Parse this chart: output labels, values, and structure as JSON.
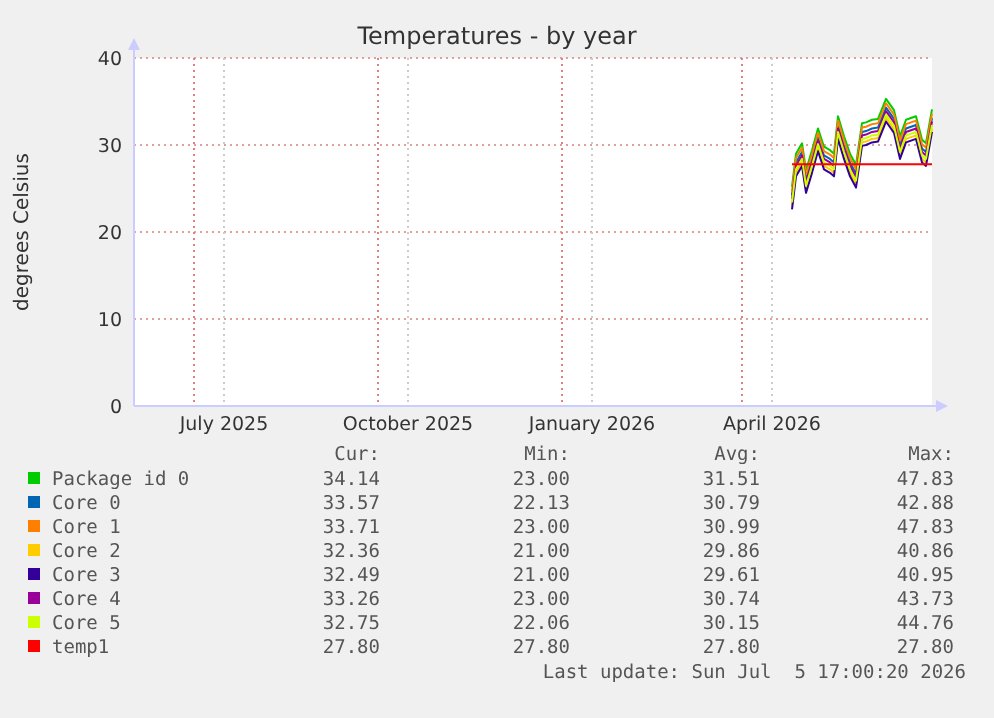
{
  "chart_data": {
    "type": "line",
    "title": "Temperatures - by year",
    "ylabel": "degrees Celsius",
    "x": [
      "2026-04-26",
      "2026-04-28",
      "2026-05-01",
      "2026-05-03",
      "2026-05-06",
      "2026-05-09",
      "2026-05-12",
      "2026-05-15",
      "2026-05-17",
      "2026-05-19",
      "2026-05-22",
      "2026-05-25",
      "2026-05-28",
      "2026-05-31",
      "2026-06-02",
      "2026-06-05",
      "2026-06-08",
      "2026-06-12",
      "2026-06-16",
      "2026-06-19",
      "2026-06-22",
      "2026-06-27",
      "2026-06-30",
      "2026-07-02",
      "2026-07-05"
    ],
    "series": [
      {
        "name": "Package id 0",
        "color": "#00cc00",
        "values": [
          25.2,
          29.0,
          30.2,
          27.1,
          29.4,
          31.9,
          29.8,
          29.4,
          29.0,
          33.3,
          31.0,
          29.0,
          27.7,
          32.5,
          32.6,
          32.9,
          33.0,
          35.3,
          34.0,
          31.0,
          32.9,
          33.3,
          30.6,
          30.2,
          34.1
        ]
      },
      {
        "name": "Core 0",
        "color": "#0066b3",
        "values": [
          24.2,
          28.0,
          29.2,
          26.1,
          28.4,
          30.9,
          28.8,
          28.4,
          28.0,
          32.3,
          30.0,
          28.0,
          26.7,
          31.5,
          31.6,
          31.9,
          32.0,
          34.3,
          33.0,
          30.0,
          31.9,
          32.3,
          29.6,
          29.2,
          33.1
        ]
      },
      {
        "name": "Core 1",
        "color": "#ff8000",
        "values": [
          24.7,
          28.5,
          29.7,
          26.6,
          28.9,
          31.4,
          29.3,
          28.9,
          28.5,
          32.8,
          30.5,
          28.5,
          27.2,
          32.0,
          32.1,
          32.4,
          32.5,
          34.8,
          33.5,
          30.5,
          32.4,
          32.8,
          30.1,
          29.7,
          33.6
        ]
      },
      {
        "name": "Core 2",
        "color": "#ffcc00",
        "values": [
          23.0,
          26.8,
          28.0,
          24.9,
          27.2,
          29.7,
          27.6,
          27.2,
          26.8,
          31.1,
          28.8,
          26.8,
          25.5,
          30.3,
          30.4,
          30.7,
          30.8,
          33.1,
          31.8,
          28.8,
          30.7,
          31.1,
          28.4,
          28.0,
          31.9
        ]
      },
      {
        "name": "Core 3",
        "color": "#330099",
        "values": [
          22.6,
          26.4,
          27.6,
          24.5,
          26.8,
          29.3,
          27.2,
          26.8,
          26.4,
          30.7,
          28.4,
          26.4,
          25.1,
          29.9,
          30.0,
          30.3,
          30.4,
          32.7,
          31.4,
          28.4,
          30.3,
          30.7,
          28.0,
          27.6,
          31.5
        ]
      },
      {
        "name": "Core 4",
        "color": "#990099",
        "values": [
          23.8,
          27.6,
          28.8,
          25.7,
          28.0,
          30.5,
          28.4,
          28.0,
          27.6,
          31.9,
          29.6,
          27.6,
          26.3,
          31.1,
          31.2,
          31.5,
          31.6,
          33.9,
          32.6,
          29.6,
          31.5,
          31.9,
          29.2,
          28.8,
          32.7
        ]
      },
      {
        "name": "Core 5",
        "color": "#ccff00",
        "values": [
          23.4,
          27.2,
          28.4,
          25.3,
          27.6,
          30.1,
          28.0,
          27.6,
          27.2,
          31.5,
          29.2,
          27.2,
          25.9,
          30.7,
          30.8,
          31.1,
          31.2,
          33.5,
          32.2,
          29.2,
          31.1,
          31.5,
          28.8,
          28.4,
          32.3
        ]
      },
      {
        "name": "temp1",
        "color": "#ff0000",
        "x": [
          "2026-04-26",
          "2026-07-05"
        ],
        "values": [
          27.8,
          27.8
        ]
      }
    ],
    "xlim": [
      "2025-06-01",
      "2026-07-05"
    ],
    "xticks": [
      {
        "value": "2025-07-01",
        "label": null
      },
      {
        "value": "2025-07-16",
        "label": "July 2025"
      },
      {
        "value": "2025-10-01",
        "label": null
      },
      {
        "value": "2025-10-16",
        "label": "October 2025"
      },
      {
        "value": "2026-01-01",
        "label": null
      },
      {
        "value": "2026-01-16",
        "label": "January 2026"
      },
      {
        "value": "2026-04-01",
        "label": null
      },
      {
        "value": "2026-04-16",
        "label": "April 2026"
      }
    ],
    "ylim": [
      0,
      40
    ],
    "yticks": [
      0,
      10,
      20,
      30,
      40
    ],
    "grid": true,
    "legend": "bottom",
    "line_style": "solid",
    "marker": "none",
    "annotations": [
      "Cur:",
      "Min:",
      "Avg:",
      "Max:",
      "34.14",
      "23.00",
      "31.51",
      "47.83",
      "33.57",
      "22.13",
      "30.79",
      "42.88",
      "33.71",
      "23.00",
      "30.99",
      "47.83",
      "32.36",
      "21.00",
      "29.86",
      "40.86",
      "32.49",
      "21.00",
      "29.61",
      "40.95",
      "33.26",
      "23.00",
      "30.74",
      "43.73",
      "32.75",
      "22.06",
      "30.15",
      "44.76",
      "27.80",
      "27.80",
      "27.80",
      "27.80",
      "Last update: Sun Jul  5 17:00:20 2026"
    ]
  }
}
